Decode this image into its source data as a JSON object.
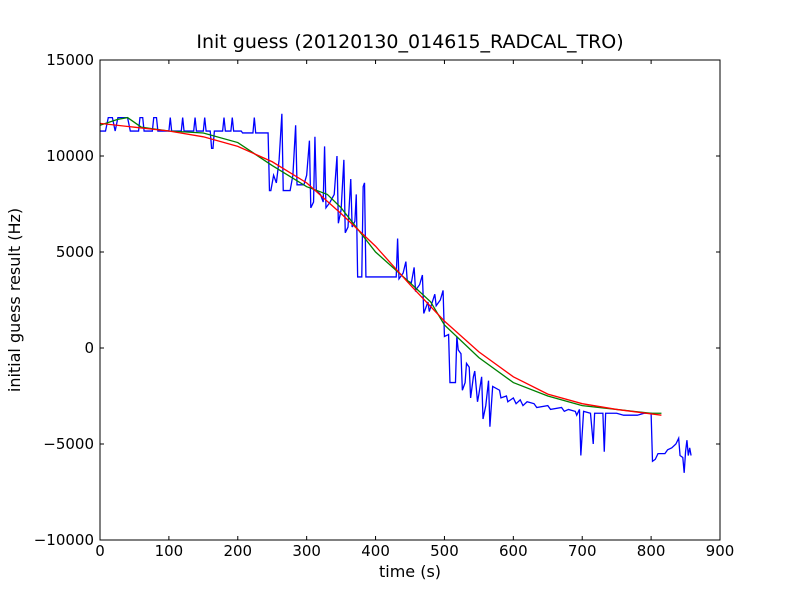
{
  "chart_data": {
    "type": "line",
    "title": "Init guess (20120130_014615_RADCAL_TRO)",
    "x_label": "time (s)",
    "y_label": "initial guess result (Hz)",
    "xlim": [
      0,
      900
    ],
    "xticks": [
      0,
      100,
      200,
      300,
      400,
      500,
      600,
      700,
      800,
      900
    ],
    "ylim": [
      -10000,
      15000
    ],
    "yticks": [
      {
        "value": -10000,
        "label": "−10000"
      },
      {
        "value": -5000,
        "label": "−5000"
      },
      0,
      5000,
      10000,
      15000
    ],
    "series": [
      {
        "color": "#0000ff",
        "x": [
          0,
          8,
          12,
          18,
          22,
          26,
          40,
          44,
          56,
          58,
          62,
          64,
          76,
          78,
          82,
          84,
          100,
          102,
          104,
          118,
          120,
          122,
          136,
          138,
          140,
          150,
          152,
          154,
          160,
          162,
          164,
          166,
          178,
          180,
          182,
          190,
          192,
          194,
          205,
          207,
          222,
          224,
          226,
          244,
          246,
          248,
          252,
          256,
          260,
          264,
          266,
          276,
          280,
          284,
          286,
          296,
          300,
          304,
          306,
          310,
          312,
          314,
          320,
          324,
          326,
          328,
          334,
          340,
          344,
          346,
          350,
          354,
          356,
          360,
          364,
          366,
          370,
          372,
          374,
          380,
          382,
          384,
          386,
          430,
          432,
          434,
          440,
          444,
          446,
          452,
          456,
          458,
          464,
          468,
          470,
          476,
          478,
          486,
          488,
          494,
          498,
          500,
          506,
          508,
          516,
          518,
          520,
          524,
          526,
          530,
          532,
          536,
          538,
          542,
          544,
          548,
          550,
          554,
          556,
          560,
          564,
          566,
          570,
          580,
          582,
          590,
          592,
          600,
          604,
          610,
          614,
          620,
          630,
          634,
          650,
          654,
          670,
          674,
          680,
          690,
          692,
          696,
          698,
          702,
          712,
          716,
          718,
          730,
          732,
          734,
          750,
          760,
          780,
          790,
          800,
          802,
          806,
          810,
          820,
          824,
          830,
          836,
          840,
          842,
          846,
          848,
          850,
          852,
          854,
          856,
          858
        ],
        "values": [
          11300,
          11300,
          12000,
          12000,
          11300,
          12000,
          12000,
          11300,
          11300,
          12000,
          12000,
          11300,
          11300,
          12000,
          12000,
          11300,
          11300,
          12000,
          11300,
          11300,
          12000,
          11300,
          11300,
          12000,
          11300,
          11300,
          12000,
          11300,
          11300,
          10400,
          10400,
          11300,
          11300,
          12000,
          11300,
          11300,
          12000,
          11300,
          11300,
          11200,
          11200,
          12000,
          11200,
          11200,
          8200,
          8200,
          9000,
          8600,
          9800,
          12200,
          8200,
          8200,
          9000,
          11600,
          8500,
          8500,
          9000,
          10800,
          7300,
          7600,
          11000,
          8200,
          8000,
          7600,
          10500,
          7300,
          7600,
          8000,
          10000,
          6500,
          7200,
          9800,
          6000,
          6300,
          8800,
          6300,
          6600,
          8000,
          3700,
          3700,
          8400,
          8600,
          3700,
          3700,
          5700,
          3600,
          3900,
          4500,
          3500,
          3400,
          4200,
          3000,
          3300,
          3800,
          1800,
          2400,
          1900,
          2800,
          2200,
          2500,
          3000,
          600,
          700,
          -1800,
          -1800,
          600,
          -100,
          -300,
          -2200,
          -1800,
          -800,
          -1000,
          -2600,
          -1500,
          -1200,
          -2800,
          -2400,
          -1500,
          -3700,
          -3000,
          -1700,
          -4100,
          -2000,
          -2200,
          -2600,
          -2500,
          -2800,
          -2600,
          -2900,
          -2700,
          -3000,
          -2800,
          -2900,
          -3100,
          -3000,
          -3200,
          -3100,
          -3300,
          -3200,
          -3300,
          -3500,
          -3200,
          -5600,
          -3300,
          -3400,
          -5000,
          -3400,
          -3400,
          -5400,
          -3400,
          -3400,
          -3500,
          -3500,
          -3400,
          -3400,
          -5900,
          -5800,
          -5500,
          -5500,
          -5300,
          -5200,
          -5000,
          -4700,
          -5600,
          -5700,
          -6500,
          -5400,
          -4800,
          -5600,
          -5200,
          -5600
        ]
      },
      {
        "color": "#008000",
        "x": [
          0,
          25,
          40,
          60,
          100,
          150,
          200,
          250,
          300,
          330,
          350,
          400,
          450,
          480,
          500,
          550,
          600,
          650,
          700,
          750,
          800,
          815
        ],
        "values": [
          11600,
          11900,
          12000,
          11500,
          11300,
          11200,
          10700,
          9500,
          8400,
          8000,
          7300,
          5000,
          3400,
          2400,
          1200,
          -500,
          -1800,
          -2500,
          -3000,
          -3200,
          -3400,
          -3400
        ]
      },
      {
        "color": "#ff0000",
        "x": [
          0,
          50,
          100,
          150,
          200,
          250,
          300,
          350,
          400,
          450,
          500,
          550,
          600,
          650,
          700,
          750,
          815
        ],
        "values": [
          11700,
          11500,
          11300,
          11000,
          10500,
          9700,
          8600,
          7000,
          5300,
          3300,
          1400,
          -200,
          -1500,
          -2400,
          -2900,
          -3200,
          -3500
        ]
      }
    ]
  }
}
